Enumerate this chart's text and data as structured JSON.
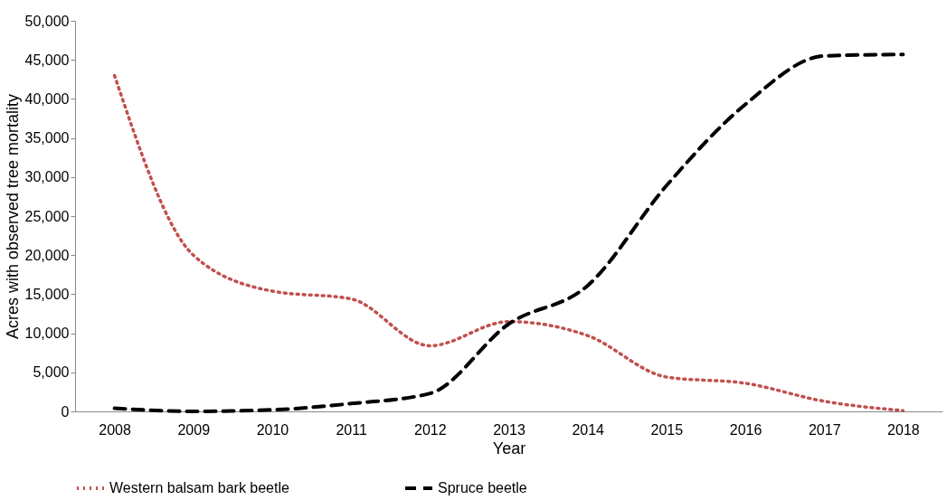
{
  "chart_data": {
    "type": "line",
    "xlabel": "Year",
    "ylabel": "Acres with observed tree mortality",
    "categories": [
      "2008",
      "2009",
      "2010",
      "2011",
      "2012",
      "2013",
      "2014",
      "2015",
      "2016",
      "2017",
      "2018"
    ],
    "series": [
      {
        "name": "Western balsam bark beetle",
        "color": "#c0504d",
        "line_style": "dotted",
        "values": [
          43000,
          20000,
          15400,
          14400,
          8400,
          11500,
          9700,
          4400,
          3600,
          1300,
          100
        ]
      },
      {
        "name": "Spruce beetle",
        "color": "#000000",
        "line_style": "dashed",
        "values": [
          400,
          0,
          200,
          1000,
          2300,
          11200,
          16100,
          28900,
          39300,
          45500,
          45700
        ]
      }
    ],
    "ylim": [
      0,
      50000
    ],
    "yticks": [
      0,
      {
        "value": 5000,
        "label": "5,000"
      },
      {
        "value": 10000,
        "label": "10,000"
      },
      {
        "value": 15000,
        "label": "15,000"
      },
      {
        "value": 20000,
        "label": "20,000"
      },
      {
        "value": 25000,
        "label": "25,000"
      },
      {
        "value": 30000,
        "label": "30,000"
      },
      {
        "value": 35000,
        "label": "35,000"
      },
      {
        "value": 40000,
        "label": "40,000"
      },
      {
        "value": 45000,
        "label": "45,000"
      },
      {
        "value": 50000,
        "label": "50,000"
      }
    ],
    "grid": false,
    "legend": "bottom",
    "marker": "none"
  }
}
